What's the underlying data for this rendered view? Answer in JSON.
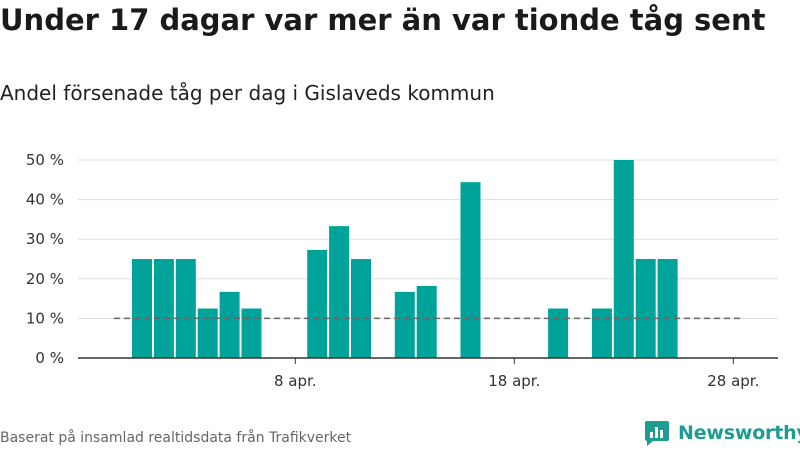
{
  "title": "Under 17 dagar var mer än var tionde tåg sent",
  "subtitle": "Andel försenade tåg per dag i Gislaveds kommun",
  "source": "Baserat på insamlad realtidsdata från Trafikverket",
  "brand": {
    "name": "Newsworthy",
    "icon": "newsworthy-logo-icon"
  },
  "colors": {
    "bar": "#00a39a",
    "threshold": "#666666",
    "grid": "#dddddd",
    "axis": "#333333",
    "brand": "#1f9c91"
  },
  "chart_data": {
    "type": "bar",
    "x": [
      "2019-04-01",
      "2019-04-02",
      "2019-04-03",
      "2019-04-04",
      "2019-04-05",
      "2019-04-06",
      "2019-04-07",
      "2019-04-08",
      "2019-04-09",
      "2019-04-10",
      "2019-04-11",
      "2019-04-12",
      "2019-04-13",
      "2019-04-14",
      "2019-04-15",
      "2019-04-16",
      "2019-04-17",
      "2019-04-18",
      "2019-04-19",
      "2019-04-20",
      "2019-04-21",
      "2019-04-22",
      "2019-04-23",
      "2019-04-24",
      "2019-04-25",
      "2019-04-26",
      "2019-04-27",
      "2019-04-28",
      "2019-04-29",
      "2019-04-30"
    ],
    "values": [
      25,
      25,
      25,
      12.5,
      16.7,
      12.5,
      0,
      0,
      27.3,
      33.3,
      25,
      0,
      16.7,
      18.2,
      0,
      44.4,
      0,
      0,
      0,
      12.5,
      0,
      12.5,
      50,
      25,
      25,
      0,
      0,
      0,
      0,
      0
    ],
    "threshold": 10,
    "ylim": [
      0,
      50
    ],
    "yticks": [
      0,
      10,
      20,
      30,
      40,
      50
    ],
    "ytick_labels": [
      "0 %",
      "10 %",
      "20 %",
      "30 %",
      "40 %",
      "50 %"
    ],
    "xtick_dates": [
      "2019-04-08",
      "2019-04-18",
      "2019-04-28"
    ],
    "xtick_labels": [
      "8 apr.",
      "18 apr.",
      "28 apr."
    ],
    "grid": true,
    "legend": "none"
  }
}
